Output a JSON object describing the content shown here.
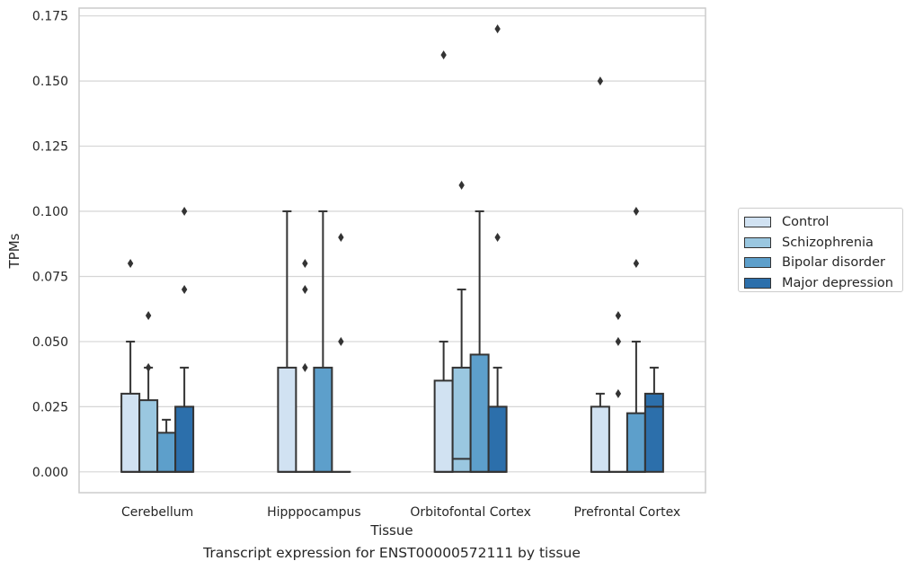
{
  "chart_data": {
    "type": "box",
    "xlabel": "Tissue",
    "ylabel": "TPMs",
    "caption": "Transcript expression for ENST00000572111 by tissue",
    "categories": [
      "Cerebellum",
      "Hipppocampus",
      "Orbitofontal Cortex",
      "Prefrontal Cortex"
    ],
    "ylim": [
      -0.008,
      0.178
    ],
    "yticks": [
      "0.000",
      "0.025",
      "0.050",
      "0.075",
      "0.100",
      "0.125",
      "0.150",
      "0.175"
    ],
    "grid": true,
    "legend_position": "right",
    "series": [
      {
        "name": "Control",
        "color": "#d1e2f2",
        "boxes": [
          {
            "q1": 0.0,
            "median": 0.0,
            "q3": 0.03,
            "whisker_low": 0.0,
            "whisker_high": 0.05,
            "outliers": [
              0.08
            ]
          },
          {
            "q1": 0.0,
            "median": 0.0,
            "q3": 0.04,
            "whisker_low": 0.0,
            "whisker_high": 0.1,
            "outliers": []
          },
          {
            "q1": 0.0,
            "median": 0.0,
            "q3": 0.035,
            "whisker_low": 0.0,
            "whisker_high": 0.05,
            "outliers": [
              0.16
            ]
          },
          {
            "q1": 0.0,
            "median": 0.0,
            "q3": 0.025,
            "whisker_low": 0.0,
            "whisker_high": 0.03,
            "outliers": [
              0.15
            ]
          }
        ]
      },
      {
        "name": "Schizophrenia",
        "color": "#9ac7e0",
        "boxes": [
          {
            "q1": 0.0,
            "median": 0.0,
            "q3": 0.0275,
            "whisker_low": 0.0,
            "whisker_high": 0.04,
            "outliers": [
              0.06,
              0.04
            ]
          },
          {
            "q1": 0.0,
            "median": 0.0,
            "q3": 0.0,
            "whisker_low": 0.0,
            "whisker_high": 0.0,
            "outliers": [
              0.04,
              0.07,
              0.08
            ]
          },
          {
            "q1": 0.0,
            "median": 0.005,
            "q3": 0.04,
            "whisker_low": 0.0,
            "whisker_high": 0.07,
            "outliers": [
              0.11
            ]
          },
          {
            "q1": 0.0,
            "median": 0.0,
            "q3": 0.0,
            "whisker_low": 0.0,
            "whisker_high": 0.0,
            "outliers": [
              0.03,
              0.05,
              0.06
            ]
          }
        ]
      },
      {
        "name": "Bipolar disorder",
        "color": "#5d9fcb",
        "boxes": [
          {
            "q1": 0.0,
            "median": 0.0,
            "q3": 0.015,
            "whisker_low": 0.0,
            "whisker_high": 0.02,
            "outliers": []
          },
          {
            "q1": 0.0,
            "median": 0.0,
            "q3": 0.04,
            "whisker_low": 0.0,
            "whisker_high": 0.1,
            "outliers": []
          },
          {
            "q1": 0.0,
            "median": 0.0,
            "q3": 0.045,
            "whisker_low": 0.0,
            "whisker_high": 0.1,
            "outliers": []
          },
          {
            "q1": 0.0,
            "median": 0.0,
            "q3": 0.0225,
            "whisker_low": 0.0,
            "whisker_high": 0.05,
            "outliers": [
              0.08,
              0.1
            ]
          }
        ]
      },
      {
        "name": "Major depression",
        "color": "#2c6fab",
        "boxes": [
          {
            "q1": 0.0,
            "median": 0.0,
            "q3": 0.025,
            "whisker_low": 0.0,
            "whisker_high": 0.04,
            "outliers": [
              0.07,
              0.1
            ]
          },
          {
            "q1": 0.0,
            "median": 0.0,
            "q3": 0.0,
            "whisker_low": 0.0,
            "whisker_high": 0.0,
            "outliers": [
              0.05,
              0.09
            ]
          },
          {
            "q1": 0.0,
            "median": 0.0,
            "q3": 0.025,
            "whisker_low": 0.0,
            "whisker_high": 0.04,
            "outliers": [
              0.09,
              0.17
            ]
          },
          {
            "q1": 0.0,
            "median": 0.025,
            "q3": 0.03,
            "whisker_low": 0.0,
            "whisker_high": 0.04,
            "outliers": []
          }
        ]
      }
    ]
  }
}
